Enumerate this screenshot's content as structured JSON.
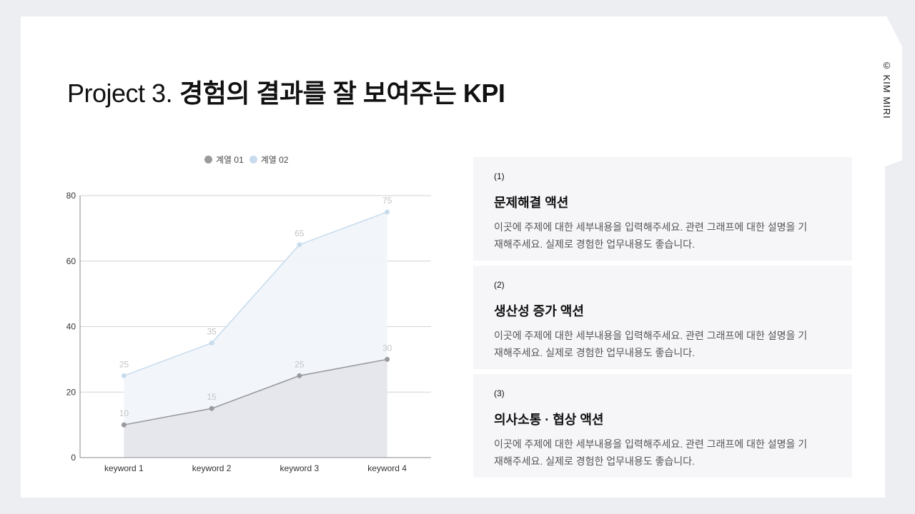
{
  "slide": {
    "title_light": "Project 3.",
    "title_bold": "경험의 결과를 잘 보여주는 KPI",
    "copyright": "© KIM MIRI"
  },
  "legend": {
    "items": [
      {
        "label": "계열 01",
        "color": "#9a9a9f"
      },
      {
        "label": "계열 02",
        "color": "#c9dced"
      }
    ]
  },
  "chart_data": {
    "type": "area",
    "title": "",
    "xlabel": "",
    "ylabel": "",
    "categories": [
      "keyword 1",
      "keyword 2",
      "keyword 3",
      "keyword 4"
    ],
    "series": [
      {
        "name": "계열 01",
        "values": [
          10,
          15,
          25,
          30
        ],
        "color": "#9a9a9f",
        "fill": "#e4e6ec"
      },
      {
        "name": "계열 02",
        "values": [
          25,
          35,
          65,
          75
        ],
        "color": "#c9dced",
        "fill": "#f1f6fa"
      }
    ],
    "ylim": [
      0,
      80
    ],
    "yticks": [
      0,
      20,
      40,
      60,
      80
    ],
    "grid": true,
    "legend_position": "top",
    "data_labels": true
  },
  "cards": [
    {
      "num": "(1)",
      "title": "문제해결 액션",
      "desc": "이곳에 주제에 대한 세부내용을 입력해주세요. 관련 그래프에 대한 설명을 기재해주세요. 실제로 경험한 업무내용도 좋습니다."
    },
    {
      "num": "(2)",
      "title": "생산성 증가 액션",
      "desc": "이곳에 주제에 대한 세부내용을 입력해주세요. 관련 그래프에 대한 설명을 기재해주세요. 실제로 경험한 업무내용도 좋습니다."
    },
    {
      "num": "(3)",
      "title": "의사소통 · 협상 액션",
      "desc": "이곳에 주제에 대한 세부내용을 입력해주세요. 관련 그래프에 대한 설명을 기재해주세요. 실제로 경험한 업무내용도 좋습니다."
    }
  ]
}
